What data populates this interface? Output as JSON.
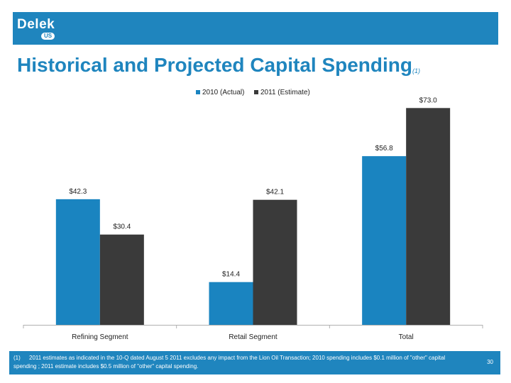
{
  "brand": {
    "name": "Delek",
    "sub": "US"
  },
  "title": {
    "text": "Historical and Projected Capital Spending",
    "note": "(1)"
  },
  "colors": {
    "accent": "#1f85be",
    "series_2010": "#1a84c0",
    "series_2011": "#3a3a3a"
  },
  "chart_data": {
    "type": "bar",
    "categories": [
      "Refining Segment",
      "Retail Segment",
      "Total"
    ],
    "series": [
      {
        "name": "2010 (Actual)",
        "values": [
          42.3,
          14.4,
          56.8
        ],
        "labels": [
          "$42.3",
          "$14.4",
          "$56.8"
        ],
        "color": "#1a84c0"
      },
      {
        "name": "2011 (Estimate)",
        "values": [
          30.4,
          42.1,
          73.0
        ],
        "labels": [
          "$30.4",
          "$42.1",
          "$73.0"
        ],
        "color": "#3a3a3a"
      }
    ],
    "ylim": [
      0,
      80
    ],
    "grid": false,
    "legend": "top-center"
  },
  "footer": {
    "note_number": "(1)",
    "note_text": "2011 estimates as indicated in the 10-Q dated August 5 2011 excludes any impact from the Lion Oil Transaction; 2010 spending includes $0.1 million of \"other\" capital spending ; 2011 estimate includes $0.5 million of \"other\" capital spending.",
    "page_number": "30"
  }
}
